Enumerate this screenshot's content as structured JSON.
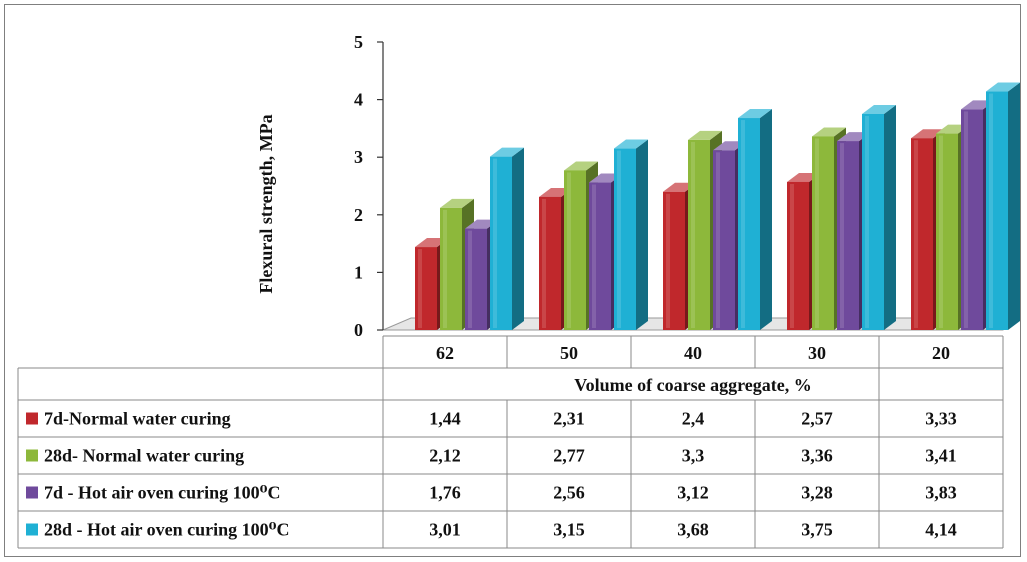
{
  "chart_data": {
    "type": "bar",
    "title": "",
    "ylabel": "Flexural strength, MPa",
    "xlabel": "Volume of coarse aggregate, %",
    "ylim": [
      0,
      5
    ],
    "yticks": [
      "0",
      "1",
      "2",
      "3",
      "4",
      "5"
    ],
    "categories": [
      "62",
      "50",
      "40",
      "30",
      "20"
    ],
    "grid": false,
    "legend": "data-table",
    "series": [
      {
        "name": "7d-Normal water curing",
        "color": "#c0282c",
        "values": [
          1.44,
          2.31,
          2.4,
          2.57,
          3.33
        ],
        "labels": [
          "1,44",
          "2,31",
          "2,4",
          "2,57",
          "3,33"
        ]
      },
      {
        "name": "28d- Normal water curing",
        "color": "#8db83b",
        "values": [
          2.12,
          2.77,
          3.3,
          3.36,
          3.41
        ],
        "labels": [
          "2,12",
          "2,77",
          "3,3",
          "3,36",
          "3,41"
        ]
      },
      {
        "name": "7d - Hot air oven curing 100⁰C",
        "color": "#6f4a9c",
        "values": [
          1.76,
          2.56,
          3.12,
          3.28,
          3.83
        ],
        "labels": [
          "1,76",
          "2,56",
          "3,12",
          "3,28",
          "3,83"
        ]
      },
      {
        "name": "28d - Hot air oven curing 100⁰C",
        "color": "#1fb0d4",
        "values": [
          3.01,
          3.15,
          3.68,
          3.75,
          4.14
        ],
        "labels": [
          "3,01",
          "3,15",
          "3,68",
          "3,75",
          "4,14"
        ]
      }
    ]
  }
}
